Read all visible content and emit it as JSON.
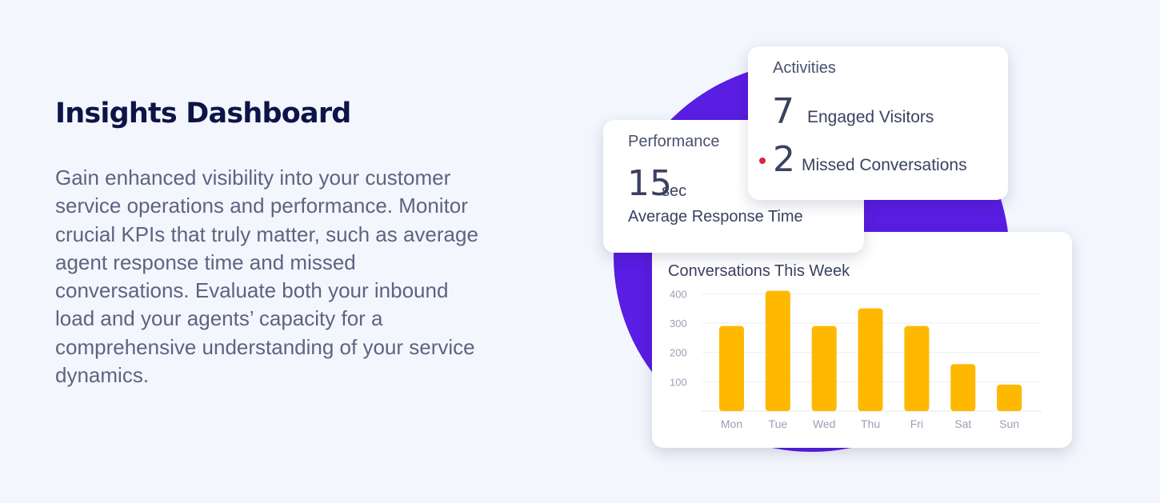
{
  "hero": {
    "title": "Insights Dashboard",
    "description": "Gain enhanced visibility into your customer service operations and performance. Monitor crucial KPIs that truly matter, such as average agent response time and missed conversations. Evaluate both your inbound load and your agents’ capacity for a comprehensive understanding of your service dynamics."
  },
  "colors": {
    "background": "#f3f6fd",
    "circle": "#5a1de3",
    "bar": "#ffb800",
    "missed_dot": "#d8263c",
    "title": "#0d1447"
  },
  "performance": {
    "label": "Performance",
    "value": "15",
    "unit": "sec",
    "caption": "Average Response Time"
  },
  "activities": {
    "label": "Activities",
    "engaged_count": "7",
    "engaged_label": "Engaged Visitors",
    "missed_count": "2",
    "missed_label": "Missed Conversations"
  },
  "chart_data": {
    "type": "bar",
    "title": "Conversations This Week",
    "categories": [
      "Mon",
      "Tue",
      "Wed",
      "Thu",
      "Fri",
      "Sat",
      "Sun"
    ],
    "values": [
      290,
      410,
      290,
      350,
      290,
      160,
      90
    ],
    "yticks": [
      100,
      200,
      300,
      400
    ],
    "ylim": [
      0,
      420
    ],
    "grid": true
  }
}
